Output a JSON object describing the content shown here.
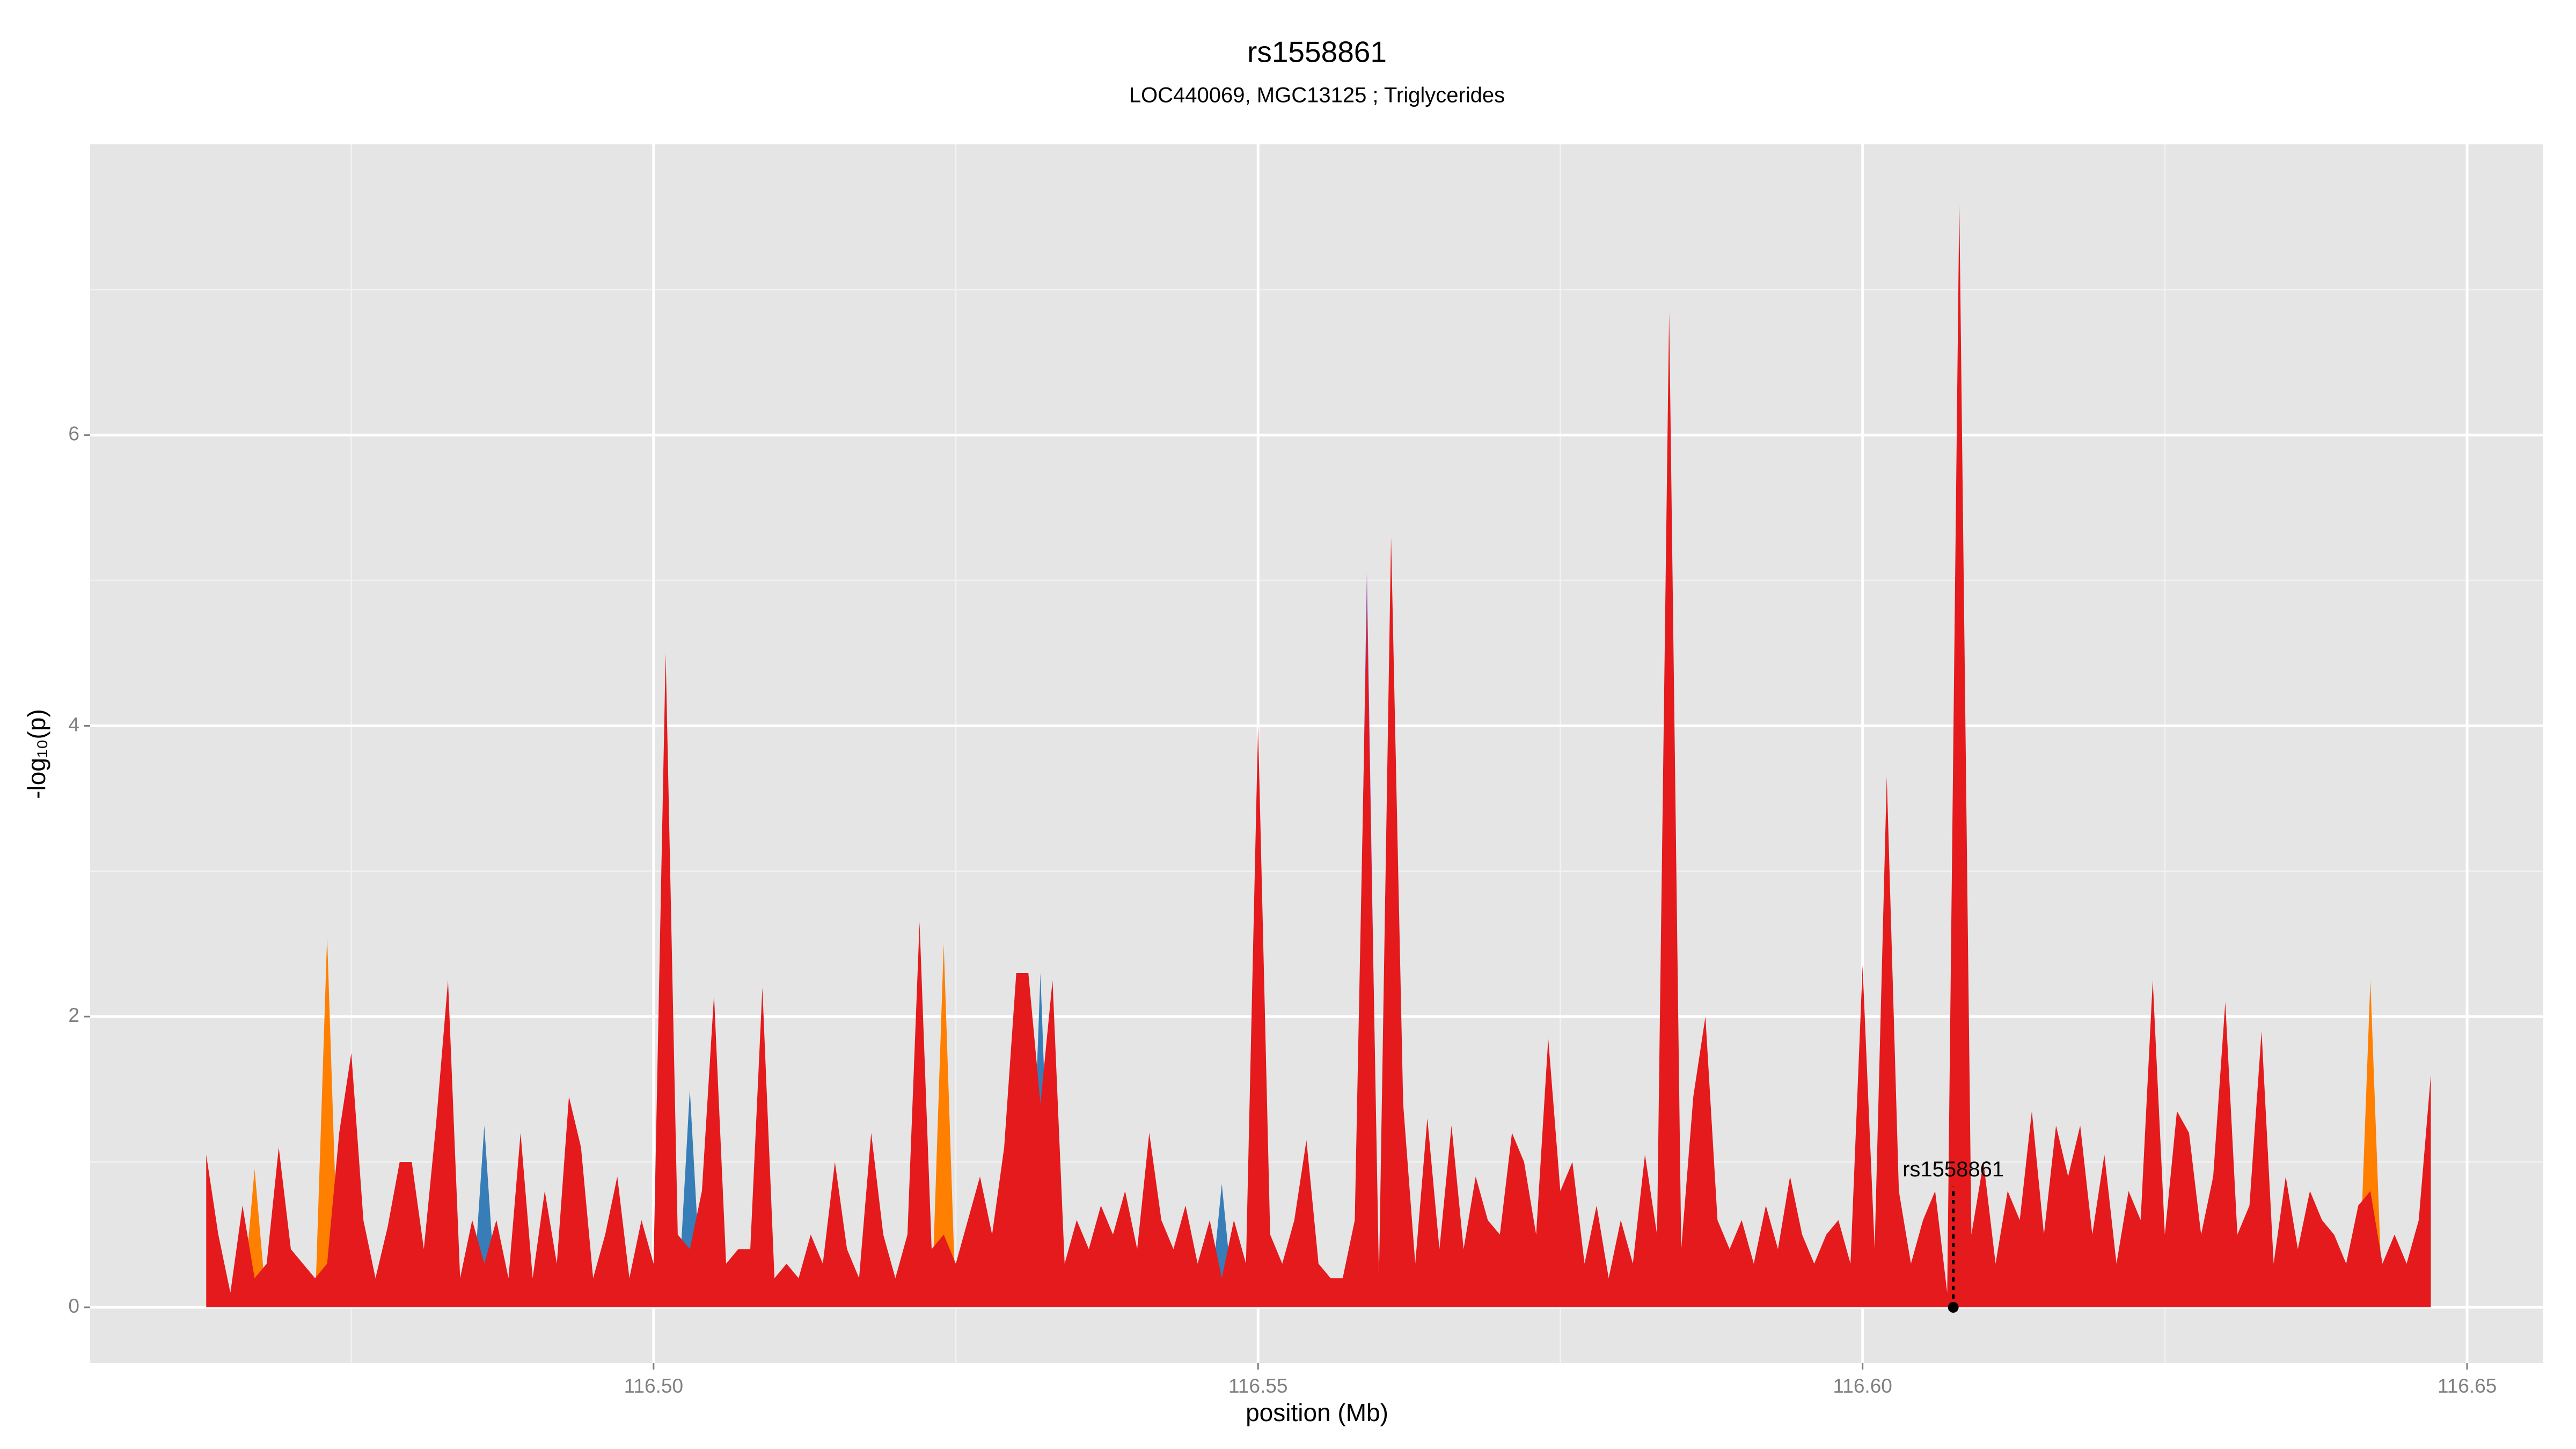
{
  "chart_data": {
    "type": "area",
    "title": "rs1558861",
    "subtitle": "LOC440069, MGC13125 ; Triglycerides",
    "xlabel": "position (Mb)",
    "ylabel": "-log₁₀(p)",
    "xlim": [
      116.4534,
      116.6563
    ],
    "ylim": [
      -0.384,
      8.0
    ],
    "xticks": [
      {
        "value": 116.5,
        "label": "116.50"
      },
      116.55,
      {
        "value": 116.6,
        "label": "116.60"
      },
      {
        "value": 116.65,
        "label": "116.65"
      }
    ],
    "yticks": [
      0,
      2,
      4,
      6
    ],
    "x_minor_grid": [
      116.475,
      116.525,
      116.575,
      116.625
    ],
    "y_minor_grid": [
      1,
      3,
      5,
      7
    ],
    "grid": true,
    "series": [
      {
        "color": "#e41a1c",
        "x": [
          116.463,
          116.464,
          116.465,
          116.466,
          116.467,
          116.468,
          116.469,
          116.47,
          116.471,
          116.472,
          116.473,
          116.474,
          116.475,
          116.476,
          116.477,
          116.478,
          116.479,
          116.48,
          116.481,
          116.482,
          116.483,
          116.484,
          116.485,
          116.486,
          116.487,
          116.488,
          116.489,
          116.49,
          116.491,
          116.492,
          116.493,
          116.494,
          116.495,
          116.496,
          116.497,
          116.498,
          116.499,
          116.5,
          116.501,
          116.502,
          116.503,
          116.504,
          116.505,
          116.506,
          116.507,
          116.508,
          116.509,
          116.51,
          116.511,
          116.512,
          116.513,
          116.514,
          116.515,
          116.516,
          116.517,
          116.518,
          116.519,
          116.52,
          116.521,
          116.522,
          116.523,
          116.524,
          116.525,
          116.526,
          116.527,
          116.528,
          116.529,
          116.53,
          116.531,
          116.532,
          116.533,
          116.534,
          116.535,
          116.536,
          116.537,
          116.538,
          116.539,
          116.54,
          116.541,
          116.542,
          116.543,
          116.544,
          116.545,
          116.546,
          116.547,
          116.548,
          116.549,
          116.55,
          116.551,
          116.552,
          116.553,
          116.554,
          116.555,
          116.556,
          116.557,
          116.558,
          116.559,
          116.56,
          116.561,
          116.562,
          116.563,
          116.564,
          116.565,
          116.566,
          116.567,
          116.568,
          116.569,
          116.57,
          116.571,
          116.572,
          116.573,
          116.574,
          116.575,
          116.576,
          116.577,
          116.578,
          116.579,
          116.58,
          116.581,
          116.582,
          116.583,
          116.584,
          116.585,
          116.586,
          116.587,
          116.588,
          116.589,
          116.59,
          116.591,
          116.592,
          116.593,
          116.594,
          116.595,
          116.596,
          116.597,
          116.598,
          116.599,
          116.6,
          116.601,
          116.602,
          116.603,
          116.604,
          116.605,
          116.606,
          116.607,
          116.608,
          116.609,
          116.61,
          116.611,
          116.612,
          116.613,
          116.614,
          116.615,
          116.616,
          116.617,
          116.618,
          116.619,
          116.62,
          116.621,
          116.622,
          116.623,
          116.624,
          116.625,
          116.626,
          116.627,
          116.628,
          116.629,
          116.63,
          116.631,
          116.632,
          116.633,
          116.634,
          116.635,
          116.636,
          116.637,
          116.638,
          116.639,
          116.64,
          116.641,
          116.642,
          116.643,
          116.644,
          116.645,
          116.646,
          116.647
        ],
        "values": [
          1.05,
          0.5,
          0.1,
          0.7,
          0.2,
          0.3,
          1.1,
          0.4,
          0.3,
          0.2,
          0.3,
          1.2,
          1.75,
          0.6,
          0.2,
          0.55,
          1.0,
          1.0,
          0.4,
          1.25,
          2.25,
          0.2,
          0.6,
          0.3,
          0.6,
          0.2,
          1.2,
          0.2,
          0.8,
          0.3,
          1.45,
          1.1,
          0.2,
          0.5,
          0.9,
          0.2,
          0.6,
          0.3,
          4.5,
          0.5,
          0.4,
          0.8,
          2.15,
          0.3,
          0.4,
          0.4,
          2.2,
          0.2,
          0.3,
          0.2,
          0.5,
          0.3,
          1.0,
          0.4,
          0.2,
          1.2,
          0.5,
          0.2,
          0.5,
          2.65,
          0.4,
          0.5,
          0.3,
          0.6,
          0.9,
          0.5,
          1.1,
          2.3,
          2.3,
          1.4,
          2.25,
          0.3,
          0.6,
          0.4,
          0.7,
          0.5,
          0.8,
          0.4,
          1.2,
          0.6,
          0.4,
          0.7,
          0.3,
          0.6,
          0.2,
          0.6,
          0.3,
          4.0,
          0.5,
          0.3,
          0.6,
          1.15,
          0.3,
          0.2,
          0.2,
          0.6,
          4.8,
          0.2,
          5.3,
          1.4,
          0.3,
          1.3,
          0.4,
          1.25,
          0.4,
          0.9,
          0.6,
          0.5,
          1.2,
          1.0,
          0.5,
          1.85,
          0.8,
          1.0,
          0.3,
          0.7,
          0.2,
          0.6,
          0.3,
          1.05,
          0.5,
          6.85,
          0.4,
          1.45,
          2.0,
          0.6,
          0.4,
          0.6,
          0.3,
          0.7,
          0.4,
          0.9,
          0.5,
          0.3,
          0.5,
          0.6,
          0.3,
          2.35,
          0.4,
          3.65,
          0.8,
          0.3,
          0.6,
          0.8,
          0.1,
          7.6,
          0.5,
          1.0,
          0.3,
          0.8,
          0.6,
          1.35,
          0.5,
          1.25,
          0.9,
          1.25,
          0.5,
          1.05,
          0.3,
          0.8,
          0.6,
          2.25,
          0.5,
          1.35,
          1.2,
          0.5,
          0.9,
          2.1,
          0.5,
          0.7,
          1.9,
          0.3,
          0.9,
          0.4,
          0.8,
          0.6,
          0.5,
          0.3,
          0.7,
          0.8,
          0.3,
          0.5,
          0.3,
          0.6,
          1.6
        ]
      },
      {
        "color": "#ff7f00",
        "x": [
          116.466,
          116.467,
          116.468,
          116.472,
          116.473,
          116.474,
          116.523,
          116.524,
          116.525,
          116.641,
          116.642,
          116.643
        ],
        "values": [
          0,
          0.95,
          0,
          0,
          2.55,
          0,
          0,
          2.5,
          0,
          0,
          2.25,
          0
        ]
      },
      {
        "color": "#377eb8",
        "x": [
          116.485,
          116.486,
          116.487,
          116.502,
          116.503,
          116.504,
          116.531,
          116.532,
          116.533,
          116.546,
          116.547,
          116.548
        ],
        "values": [
          0,
          1.25,
          0,
          0,
          1.5,
          0,
          0,
          2.3,
          0,
          0,
          0.85,
          0
        ]
      },
      {
        "color": "#984ea3",
        "x": [
          116.558,
          116.559,
          116.56
        ],
        "values": [
          0,
          5.05,
          0
        ]
      }
    ],
    "annotation": {
      "text": "rs1558861",
      "x": 116.6075,
      "y": 0,
      "label_y": 0.94
    }
  }
}
